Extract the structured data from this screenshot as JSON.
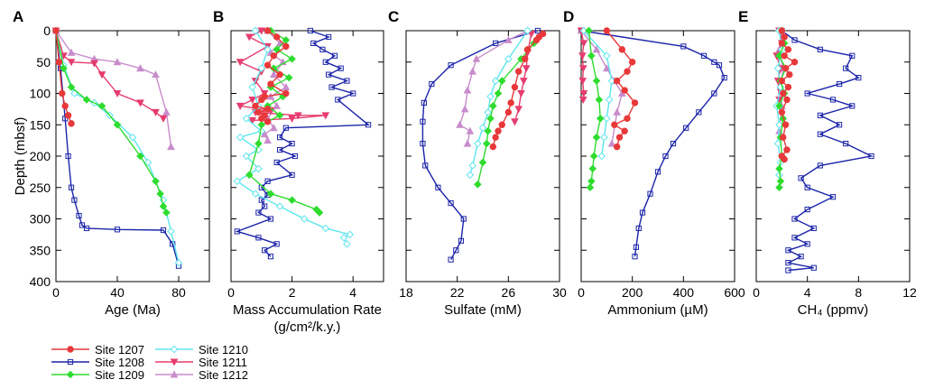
{
  "figure": {
    "ylabel": "Depth (mbsf)",
    "y_ticks": [
      "0",
      "50",
      "100",
      "150",
      "200",
      "250",
      "300",
      "350",
      "400"
    ]
  },
  "sites": [
    {
      "name": "Site 1207",
      "color": "#e8383a",
      "marker": "circle"
    },
    {
      "name": "Site 1208",
      "color": "#1b24a8",
      "marker": "square"
    },
    {
      "name": "Site 1209",
      "color": "#2fdc2f",
      "marker": "diamond"
    },
    {
      "name": "Site 1210",
      "color": "#5ee6ee",
      "marker": "diamond-open"
    },
    {
      "name": "Site 1211",
      "color": "#e63c6e",
      "marker": "triangle-down"
    },
    {
      "name": "Site 1212",
      "color": "#c88ccc",
      "marker": "triangle-up"
    }
  ],
  "legend": {
    "col1": [
      "Site 1207",
      "Site 1208",
      "Site 1209"
    ],
    "col2": [
      "Site 1210",
      "Site 1211",
      "Site 1212"
    ]
  },
  "chart_data": [
    {
      "panel": "A",
      "type": "line",
      "xlabel": "Age (Ma)",
      "xlim": [
        0,
        100
      ],
      "x_ticks": [
        "0",
        "40",
        "80"
      ],
      "ylim": [
        400,
        0
      ],
      "ylabel": "Depth (mbsf)",
      "series": [
        {
          "name": "Site 1207",
          "x": [
            0,
            2,
            4,
            6,
            8,
            10
          ],
          "y": [
            0,
            50,
            100,
            120,
            135,
            148
          ]
        },
        {
          "name": "Site 1208",
          "x": [
            0,
            3,
            6,
            8,
            10,
            12,
            15,
            17,
            20,
            40,
            70,
            76,
            80
          ],
          "y": [
            0,
            60,
            140,
            200,
            250,
            270,
            295,
            310,
            315,
            317,
            318,
            340,
            375
          ]
        },
        {
          "name": "Site 1209",
          "x": [
            0,
            5,
            10,
            20,
            30,
            40,
            55,
            65,
            68,
            70,
            72
          ],
          "y": [
            0,
            60,
            90,
            110,
            120,
            150,
            200,
            240,
            260,
            280,
            290
          ]
        },
        {
          "name": "Site 1210",
          "x": [
            0,
            5,
            12,
            25,
            35,
            50,
            60,
            65,
            70,
            75,
            80
          ],
          "y": [
            0,
            55,
            100,
            115,
            135,
            170,
            210,
            240,
            270,
            320,
            370
          ]
        },
        {
          "name": "Site 1211",
          "x": [
            0,
            5,
            10,
            25,
            30,
            40,
            55,
            65,
            70
          ],
          "y": [
            0,
            40,
            50,
            52,
            70,
            100,
            115,
            130,
            140
          ]
        },
        {
          "name": "Site 1212",
          "x": [
            0,
            10,
            25,
            40,
            55,
            65,
            72,
            75
          ],
          "y": [
            0,
            35,
            45,
            50,
            60,
            70,
            130,
            185
          ]
        }
      ]
    },
    {
      "panel": "B",
      "type": "line",
      "xlabel": "Mass Accumulation Rate",
      "xlabel2": "(g/cm²/k.y.)",
      "xlim": [
        0,
        5
      ],
      "x_ticks": [
        "0",
        "2",
        "4"
      ],
      "ylim": [
        400,
        0
      ],
      "series": [
        {
          "name": "Site 1207",
          "x": [
            1.2,
            1.5,
            1.8,
            1.4,
            1.2,
            1.6,
            1.3,
            1.8,
            1.1,
            1.0,
            0.8,
            1.2,
            0.9,
            1.1,
            1.0,
            1.2
          ],
          "y": [
            0,
            10,
            25,
            40,
            55,
            70,
            85,
            100,
            105,
            110,
            120,
            125,
            130,
            135,
            140,
            145
          ]
        },
        {
          "name": "Site 1208",
          "x": [
            2.6,
            3.2,
            2.7,
            3.0,
            3.4,
            3.1,
            3.6,
            3.2,
            3.8,
            3.3,
            4.0,
            3.5,
            4.5,
            1.8,
            1.6,
            2.0,
            1.6,
            2.1,
            1.5,
            2.0,
            1.2,
            1.0,
            1.2,
            1.0,
            1.1,
            0.9,
            1.3,
            0.2,
            0.9,
            1.5,
            1.1,
            1.3
          ],
          "y": [
            0,
            10,
            20,
            30,
            40,
            50,
            60,
            70,
            80,
            90,
            100,
            110,
            150,
            155,
            170,
            180,
            190,
            200,
            210,
            230,
            240,
            250,
            262,
            270,
            280,
            290,
            300,
            320,
            330,
            340,
            350,
            360
          ]
        },
        {
          "name": "Site 1209",
          "x": [
            1.3,
            1.8,
            1.5,
            2.0,
            1.4,
            1.9,
            1.3,
            1.7,
            1.2,
            1.6,
            1.0,
            0.9,
            0.6,
            1.3,
            2.0,
            2.8,
            2.9
          ],
          "y": [
            0,
            15,
            30,
            45,
            60,
            75,
            90,
            105,
            120,
            135,
            150,
            180,
            230,
            260,
            270,
            285,
            290
          ]
        },
        {
          "name": "Site 1210",
          "x": [
            0.8,
            1.2,
            1.0,
            0.7,
            0.9,
            0.5,
            1.0,
            0.3,
            0.9,
            0.5,
            0.9,
            0.2,
            0.8,
            1.6,
            2.4,
            3.1,
            3.9,
            3.7,
            3.8
          ],
          "y": [
            0,
            30,
            60,
            90,
            120,
            140,
            160,
            170,
            190,
            200,
            220,
            240,
            260,
            280,
            300,
            315,
            325,
            330,
            340
          ]
        },
        {
          "name": "Site 1211",
          "x": [
            1.0,
            0.6,
            1.2,
            0.3,
            1.0,
            0.8,
            1.1,
            0.7,
            0.3,
            1.3,
            0.8,
            2.2,
            3.1,
            2.0,
            0.7
          ],
          "y": [
            0,
            10,
            25,
            50,
            65,
            80,
            100,
            110,
            120,
            127,
            130,
            135,
            135,
            140,
            143
          ]
        },
        {
          "name": "Site 1212",
          "x": [
            1.2,
            1.6,
            1.3,
            1.7,
            1.4,
            1.8,
            1.3,
            1.5,
            1.2,
            1.4,
            1.1,
            1.2
          ],
          "y": [
            0,
            20,
            35,
            50,
            70,
            90,
            105,
            120,
            140,
            155,
            165,
            175
          ]
        }
      ]
    },
    {
      "panel": "C",
      "type": "line",
      "xlabel": "Sulfate (mM)",
      "xlim": [
        18,
        30
      ],
      "x_ticks": [
        "18",
        "22",
        "26",
        "30"
      ],
      "ylim": [
        400,
        0
      ],
      "series": [
        {
          "name": "Site 1207",
          "x": [
            28.7,
            28.4,
            28.2,
            27.5,
            27.3,
            26.8,
            26.5,
            26.2,
            26.0,
            25.5,
            25.2,
            25.0,
            24.8
          ],
          "y": [
            5,
            10,
            15,
            30,
            45,
            65,
            90,
            115,
            130,
            150,
            160,
            170,
            185
          ]
        },
        {
          "name": "Site 1208",
          "x": [
            28.3,
            25.0,
            21.5,
            20.0,
            19.4,
            19.3,
            19.3,
            19.5,
            20.5,
            21.5,
            22.5,
            22.3,
            21.9,
            21.5
          ],
          "y": [
            0,
            20,
            55,
            85,
            115,
            145,
            180,
            215,
            250,
            275,
            300,
            335,
            350,
            365
          ]
        },
        {
          "name": "Site 1209",
          "x": [
            28.0,
            27.0,
            25.5,
            25.2,
            24.8,
            24.6,
            24.4,
            24.3,
            24.0,
            23.6
          ],
          "y": [
            20,
            45,
            80,
            100,
            120,
            140,
            160,
            180,
            210,
            245
          ]
        },
        {
          "name": "Site 1210",
          "x": [
            27.5,
            26.0,
            25.0,
            24.6,
            24.4,
            24.0,
            23.6,
            23.2,
            23.0
          ],
          "y": [
            0,
            45,
            80,
            105,
            130,
            155,
            180,
            215,
            230
          ]
        },
        {
          "name": "Site 1211",
          "x": [
            27.8,
            27.5,
            27.4,
            27.2,
            27.0,
            26.8,
            26.5
          ],
          "y": [
            5,
            35,
            60,
            80,
            100,
            125,
            145
          ]
        },
        {
          "name": "Site 1212",
          "x": [
            27.5,
            26.0,
            23.5,
            23.2,
            22.8,
            22.6,
            22.2,
            23.0,
            22.8
          ],
          "y": [
            0,
            15,
            45,
            65,
            95,
            125,
            150,
            160,
            180
          ]
        }
      ]
    },
    {
      "panel": "D",
      "type": "line",
      "xlabel": "Ammonium (µM)",
      "xlim": [
        0,
        600
      ],
      "x_ticks": [
        "0",
        "200",
        "400",
        "600"
      ],
      "ylim": [
        400,
        0
      ],
      "series": [
        {
          "name": "Site 1207",
          "x": [
            100,
            160,
            200,
            180,
            140,
            170,
            210,
            180,
            130,
            170,
            150,
            140
          ],
          "y": [
            0,
            30,
            50,
            65,
            80,
            95,
            115,
            140,
            150,
            160,
            170,
            185
          ]
        },
        {
          "name": "Site 1208",
          "x": [
            0,
            400,
            480,
            520,
            540,
            560,
            520,
            460,
            410,
            360,
            330,
            300,
            270,
            240,
            225,
            215,
            210
          ],
          "y": [
            0,
            25,
            40,
            50,
            55,
            75,
            100,
            130,
            155,
            180,
            200,
            225,
            260,
            290,
            315,
            345,
            360
          ]
        },
        {
          "name": "Site 1209",
          "x": [
            30,
            40,
            60,
            70,
            75,
            60,
            50,
            45,
            40,
            35
          ],
          "y": [
            0,
            40,
            80,
            110,
            140,
            170,
            200,
            220,
            240,
            250
          ]
        },
        {
          "name": "Site 1210",
          "x": [
            10,
            100,
            120,
            110,
            100,
            90,
            80
          ],
          "y": [
            0,
            40,
            80,
            110,
            140,
            170,
            200
          ]
        },
        {
          "name": "Site 1211",
          "x": [
            0,
            10,
            5,
            8,
            6,
            10,
            8
          ],
          "y": [
            0,
            20,
            40,
            60,
            80,
            100,
            110
          ]
        },
        {
          "name": "Site 1212",
          "x": [
            0,
            60,
            100,
            130,
            160,
            140,
            120
          ],
          "y": [
            0,
            30,
            60,
            80,
            100,
            130,
            180
          ]
        }
      ]
    },
    {
      "panel": "E",
      "type": "line",
      "xlabel": "CH₄ (ppmv)",
      "xlim": [
        0,
        12
      ],
      "x_ticks": [
        "0",
        "4",
        "8",
        "12"
      ],
      "ylim": [
        400,
        0
      ],
      "series": [
        {
          "name": "Site 1207",
          "x": [
            2.0,
            2.2,
            2.0,
            2.5,
            2.2,
            3.0,
            2.3,
            2.6,
            2.0,
            2.5,
            2.1,
            2.4,
            2.0,
            2.3,
            2.1,
            2.4,
            2.0,
            2.2
          ],
          "y": [
            0,
            10,
            20,
            30,
            40,
            50,
            60,
            70,
            80,
            90,
            100,
            110,
            130,
            150,
            170,
            190,
            200,
            205
          ]
        },
        {
          "name": "Site 1208",
          "x": [
            2.0,
            3.0,
            5.0,
            7.5,
            7.0,
            8.0,
            6.5,
            4.0,
            6.0,
            7.5,
            5.0,
            6.5,
            5.0,
            7.0,
            9.0,
            5.0,
            3.5,
            4.0,
            6.0,
            4.0,
            3.0,
            4.5,
            3.0,
            4.0,
            2.5,
            3.5,
            2.5,
            4.5,
            2.5
          ],
          "y": [
            0,
            15,
            30,
            40,
            60,
            75,
            85,
            100,
            110,
            120,
            135,
            150,
            165,
            180,
            200,
            215,
            235,
            250,
            265,
            285,
            300,
            315,
            330,
            340,
            350,
            360,
            370,
            378,
            382
          ]
        },
        {
          "name": "Site 1209",
          "x": [
            2.0,
            2.2,
            1.8,
            2.3,
            1.9,
            2.2,
            1.8,
            2.1,
            1.9,
            2.0,
            1.8,
            1.9,
            1.8
          ],
          "y": [
            0,
            20,
            40,
            60,
            80,
            100,
            120,
            140,
            170,
            200,
            220,
            240,
            250
          ]
        },
        {
          "name": "Site 1210",
          "x": [
            1.8,
            2.0,
            1.7,
            1.9,
            1.6,
            1.8,
            1.7,
            1.9,
            1.8
          ],
          "y": [
            0,
            30,
            60,
            90,
            120,
            150,
            180,
            210,
            230
          ]
        },
        {
          "name": "Site 1211",
          "x": [
            1.8,
            2.0,
            1.6,
            1.9,
            1.7,
            1.8
          ],
          "y": [
            0,
            20,
            40,
            60,
            80,
            110
          ]
        },
        {
          "name": "Site 1212",
          "x": [
            2.0,
            1.8,
            2.1,
            1.9,
            2.0,
            1.8
          ],
          "y": [
            0,
            30,
            60,
            90,
            120,
            160
          ]
        }
      ]
    }
  ]
}
